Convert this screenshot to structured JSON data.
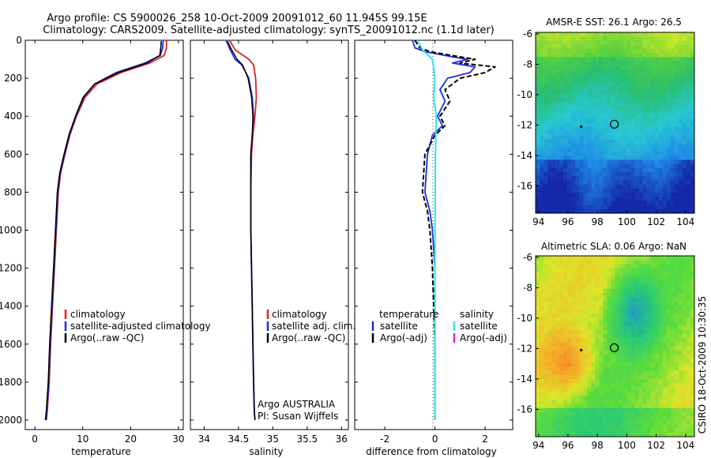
{
  "header": {
    "line1": "Argo profile: CS 5900026_258 10-Oct-2009 20091012_60 11.945S 99.15E",
    "line2": "Climatology: CARS2009. Satellite-adjusted climatology: synTS_20091012.nc (1.1d later)"
  },
  "colors": {
    "climatology": "#dd2222",
    "satellite": "#1a2ee6",
    "argo": "#000000",
    "sat_salinity": "#33e0ee",
    "argo_salinity": "#dd22dd"
  },
  "chart_data": [
    {
      "id": "temperature",
      "type": "line",
      "xlabel": "temperature",
      "ylabel": "",
      "xlim": [
        -2,
        31
      ],
      "ylim": [
        2050,
        0
      ],
      "xticks": [
        "0",
        "10",
        "20",
        "30"
      ],
      "yticks": [
        "0",
        "200",
        "400",
        "600",
        "800",
        "1000",
        "1200",
        "1400",
        "1600",
        "1800",
        "2000"
      ],
      "legend": [
        "climatology",
        "satellite-adjusted climatology",
        "Argo(..raw -QC)"
      ],
      "series": [
        {
          "name": "climatology",
          "x": [
            27.5,
            27.5,
            27.0,
            24.0,
            18.0,
            13.0,
            10.5,
            8.7,
            7.3,
            6.3,
            5.4,
            4.9,
            4.5,
            4.1,
            3.7,
            3.3,
            3.0,
            2.6,
            2.4
          ],
          "y": [
            0,
            40,
            80,
            120,
            170,
            230,
            300,
            400,
            500,
            600,
            700,
            800,
            1000,
            1200,
            1400,
            1600,
            1800,
            1950,
            2000
          ]
        },
        {
          "name": "satellite-adjusted climatology",
          "x": [
            26.8,
            26.7,
            26.2,
            23.0,
            17.0,
            12.5,
            10.2,
            8.6,
            7.2,
            6.2,
            5.3,
            4.8,
            4.4,
            4.0,
            3.6,
            3.2,
            2.9,
            2.5,
            2.3
          ],
          "y": [
            0,
            40,
            80,
            120,
            170,
            230,
            300,
            400,
            500,
            600,
            700,
            800,
            1000,
            1200,
            1400,
            1600,
            1800,
            1950,
            2000
          ]
        },
        {
          "name": "Argo(..raw -QC)",
          "x": [
            26.4,
            26.3,
            26.1,
            23.4,
            17.4,
            12.5,
            10.1,
            8.5,
            7.1,
            6.1,
            5.2,
            4.7,
            4.3,
            3.9,
            3.5,
            3.1,
            2.8,
            2.4,
            2.2
          ],
          "y": [
            5,
            40,
            80,
            120,
            170,
            230,
            300,
            400,
            500,
            600,
            700,
            800,
            1000,
            1200,
            1400,
            1600,
            1800,
            1950,
            2000
          ]
        }
      ]
    },
    {
      "id": "salinity",
      "type": "line",
      "xlabel": "salinity",
      "ylabel": "",
      "xlim": [
        33.8,
        36.1
      ],
      "ylim": [
        2050,
        0
      ],
      "xticks": [
        "34",
        "34.5",
        "35",
        "35.5",
        "36"
      ],
      "legend": [
        "climatology",
        "satellite adj. clim.",
        "Argo(..raw -QC)"
      ],
      "annotation": [
        "Argo AUSTRALIA",
        "PI: Susan Wijffels"
      ],
      "series": [
        {
          "name": "climatology",
          "x": [
            34.37,
            34.45,
            34.65,
            34.72,
            34.75,
            34.76,
            34.74,
            34.71,
            34.69,
            34.68,
            34.68,
            34.69,
            34.7,
            34.71,
            34.72,
            34.73,
            34.74
          ],
          "y": [
            0,
            50,
            100,
            130,
            200,
            300,
            400,
            500,
            600,
            800,
            1000,
            1200,
            1400,
            1600,
            1800,
            1950,
            2000
          ]
        },
        {
          "name": "satellite adj. clim.",
          "x": [
            34.32,
            34.38,
            34.45,
            34.55,
            34.65,
            34.7,
            34.72,
            34.7,
            34.68,
            34.68,
            34.68,
            34.69,
            34.7,
            34.71,
            34.72,
            34.73,
            34.74
          ],
          "y": [
            0,
            50,
            100,
            130,
            200,
            300,
            400,
            500,
            600,
            800,
            1000,
            1200,
            1400,
            1600,
            1800,
            1950,
            2000
          ]
        },
        {
          "name": "Argo(..raw -QC)",
          "x": [
            34.34,
            34.4,
            34.48,
            34.56,
            34.64,
            34.69,
            34.71,
            34.7,
            34.68,
            34.68,
            34.68,
            34.69,
            34.7,
            34.71,
            34.72,
            34.73,
            34.74
          ],
          "y": [
            5,
            50,
            100,
            130,
            200,
            300,
            400,
            500,
            600,
            800,
            1000,
            1200,
            1400,
            1600,
            1800,
            1950,
            2000
          ]
        }
      ]
    },
    {
      "id": "difference",
      "type": "line",
      "xlabel": "difference from climatology",
      "ylabel": "",
      "xlim": [
        -3.2,
        3.1
      ],
      "ylim": [
        2050,
        0
      ],
      "xticks": [
        "-2",
        "0",
        "2"
      ],
      "legend_temperature_title": "temperature",
      "legend_salinity_title": "salinity",
      "legend": [
        "satellite",
        "Argo(-adj)",
        "satellite",
        "Argo(-adj)"
      ],
      "series": [
        {
          "name": "temperature satellite",
          "x": [
            -0.9,
            -0.8,
            -0.4,
            0.8,
            1.3,
            0.7,
            1.6,
            1.4,
            0.5,
            0.2,
            0.4,
            0.1,
            0.3,
            -0.1,
            -0.3,
            -0.4,
            -0.2,
            -0.1,
            0.0,
            0.0,
            0.0
          ],
          "y": [
            0,
            40,
            60,
            90,
            100,
            120,
            140,
            170,
            200,
            260,
            320,
            400,
            450,
            500,
            600,
            800,
            900,
            1000,
            1200,
            1600,
            2000
          ]
        },
        {
          "name": "temperature Argo(-adj)",
          "x": [
            -0.8,
            -0.6,
            -0.2,
            1.1,
            1.6,
            1.0,
            2.4,
            2.0,
            1.0,
            0.4,
            0.6,
            0.2,
            0.4,
            0.0,
            -0.4,
            -0.5,
            -0.3,
            -0.2,
            -0.1,
            0.0,
            0.0
          ],
          "y": [
            0,
            40,
            60,
            90,
            100,
            120,
            140,
            170,
            200,
            260,
            320,
            400,
            450,
            500,
            600,
            800,
            900,
            1000,
            1200,
            1600,
            2000
          ]
        },
        {
          "name": "salinity satellite",
          "x": [
            -0.7,
            -0.5,
            -0.1,
            0.0,
            -0.05,
            0.05,
            0.02,
            0.0,
            0.0,
            0.0
          ],
          "y": [
            0,
            50,
            100,
            200,
            300,
            400,
            600,
            1000,
            1600,
            2000
          ]
        },
        {
          "name": "salinity Argo(-adj)",
          "x": [],
          "y": []
        }
      ]
    },
    {
      "id": "sst-map",
      "type": "heatmap",
      "title": "AMSR-E SST: 26.1 Argo: 26.5",
      "xlabel": "",
      "ylabel": "",
      "xlim": [
        93.8,
        104.6
      ],
      "ylim": [
        -17.8,
        -5.9
      ],
      "xticks": [
        "94",
        "96",
        "98",
        "100",
        "102",
        "104"
      ],
      "yticks": [
        "-6",
        "-8",
        "-10",
        "-12",
        "-14",
        "-16"
      ],
      "marker_circle": [
        99.15,
        -11.945
      ],
      "marker_dot": [
        96.9,
        -12.1
      ]
    },
    {
      "id": "sla-map",
      "type": "heatmap",
      "title": "Altimetric SLA: 0.06 Argo: NaN",
      "xlabel": "",
      "ylabel": "",
      "xlim": [
        93.8,
        104.6
      ],
      "ylim": [
        -17.8,
        -5.9
      ],
      "xticks": [
        "94",
        "96",
        "98",
        "100",
        "102",
        "104"
      ],
      "yticks": [
        "-6",
        "-8",
        "-10",
        "-12",
        "-14",
        "-16"
      ],
      "marker_circle": [
        99.15,
        -11.945
      ],
      "marker_dot": [
        96.9,
        -12.1
      ]
    }
  ],
  "footer": {
    "credit": "CSIRO 18-Oct-2009 10:30:35"
  }
}
